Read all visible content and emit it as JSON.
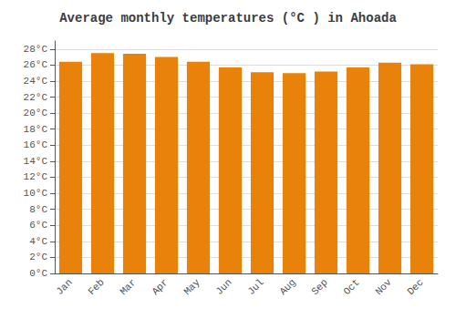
{
  "chart_data": {
    "type": "bar",
    "title": "Average monthly temperatures (°C ) in Ahoada",
    "categories": [
      "Jan",
      "Feb",
      "Mar",
      "Apr",
      "May",
      "Jun",
      "Jul",
      "Aug",
      "Sep",
      "Oct",
      "Nov",
      "Dec"
    ],
    "values": [
      26.4,
      27.5,
      27.4,
      27.0,
      26.4,
      25.7,
      25.1,
      25.0,
      25.2,
      25.7,
      26.3,
      26.1
    ],
    "color": "#E8820A",
    "ylim": [
      0,
      29
    ],
    "yticks": [
      {
        "value": 0,
        "label": "0°C"
      },
      {
        "value": 2,
        "label": "2°C"
      },
      {
        "value": 4,
        "label": "4°C"
      },
      {
        "value": 6,
        "label": "6°C"
      },
      {
        "value": 8,
        "label": "8°C"
      },
      {
        "value": 10,
        "label": "10°C"
      },
      {
        "value": 12,
        "label": "12°C"
      },
      {
        "value": 14,
        "label": "14°C"
      },
      {
        "value": 16,
        "label": "16°C"
      },
      {
        "value": 18,
        "label": "18°C"
      },
      {
        "value": 20,
        "label": "20°C"
      },
      {
        "value": 22,
        "label": "22°C"
      },
      {
        "value": 24,
        "label": "24°C"
      },
      {
        "value": 26,
        "label": "26°C"
      },
      {
        "value": 28,
        "label": "28°C"
      }
    ],
    "grid": true
  }
}
